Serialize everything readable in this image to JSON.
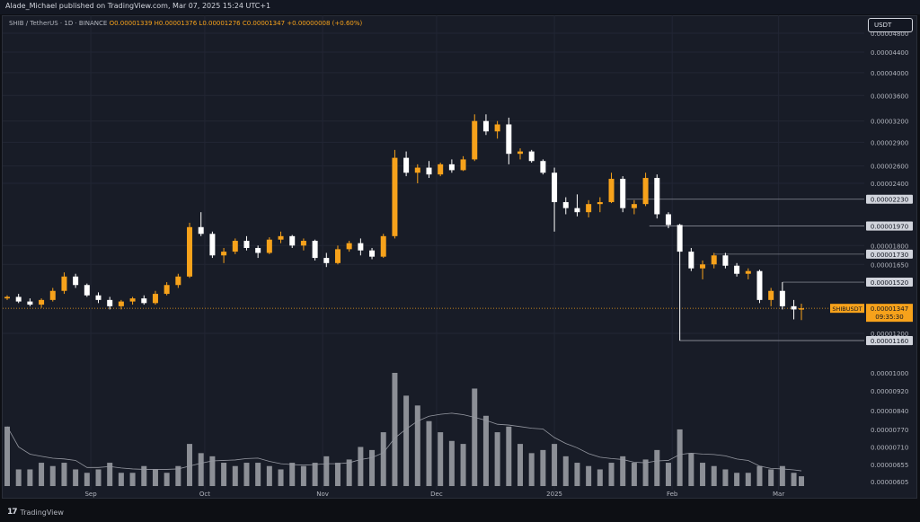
{
  "header": {
    "published": "Alade_Michael published on TradingView.com, Mar 07, 2025 15:24 UTC+1"
  },
  "legend": {
    "symbol": "SHIB / TetherUS · 1D · BINANCE",
    "ohlc": "O0.00001339  H0.00001376  L0.00001276  C0.00001347  +0.00000008 (+0.60%)"
  },
  "currency_button": {
    "label": "USDT"
  },
  "footer": {
    "logo_text": "TradingView"
  },
  "colors": {
    "up": "#f7a21b",
    "down": "#ffffff",
    "background": "#181c27",
    "grid": "#222634",
    "volume": "#8c8f96",
    "volume_ma": "#9598a1",
    "level_line": "#787b86",
    "price_line": "#f7a21b"
  },
  "chart_data": {
    "type": "candlestick",
    "symbol": "SHIBUSDT",
    "interval": "1D",
    "x_range": [
      "2024-08-10",
      "2025-03-07"
    ],
    "x_tick_labels": [
      {
        "label": "Sep",
        "date": "2024-09-01"
      },
      {
        "label": "Oct",
        "date": "2024-10-01"
      },
      {
        "label": "Nov",
        "date": "2024-11-01"
      },
      {
        "label": "Dec",
        "date": "2024-12-01"
      },
      {
        "label": "2025",
        "date": "2025-01-01"
      },
      {
        "label": "Feb",
        "date": "2025-02-01"
      },
      {
        "label": "Mar",
        "date": "2025-03-01"
      }
    ],
    "price_axis": {
      "scale": "log",
      "tick_labels": [
        "0.00004800",
        "0.00004400",
        "0.00004000",
        "0.00003600",
        "0.00003200",
        "0.00002900",
        "0.00002600",
        "0.00002400",
        "0.00001800",
        "0.00001650",
        "0.00001200"
      ],
      "tick_values": [
        4.8e-05,
        4.4e-05,
        4e-05,
        3.6e-05,
        3.2e-05,
        2.9e-05,
        2.6e-05,
        2.4e-05,
        1.8e-05,
        1.65e-05,
        1.2e-05
      ]
    },
    "volume_axis": {
      "scale": "log",
      "tick_labels": [
        "0.00001000",
        "0.00000920",
        "0.00000840",
        "0.00000770",
        "0.00000710",
        "0.00000655",
        "0.00000605"
      ],
      "tick_values": [
        1e-05,
        9.2e-06,
        8.4e-06,
        7.7e-06,
        7.1e-06,
        6.55e-06,
        6.05e-06
      ]
    },
    "levels": [
      {
        "label": "0.00002230",
        "value": 2.23e-05,
        "from": "2025-01-20"
      },
      {
        "label": "0.00001971",
        "value": 1.971e-05,
        "from": "2025-01-26"
      },
      {
        "label": "0.00001970",
        "value": 1.97e-05,
        "from": "2025-01-26"
      },
      {
        "label": "0.00001730",
        "value": 1.73e-05,
        "from": "2025-02-12"
      },
      {
        "label": "0.00001520",
        "value": 1.52e-05,
        "from": "2025-03-02"
      },
      {
        "label": "0.00001161",
        "value": 1.161e-05,
        "from": "2025-02-03"
      },
      {
        "label": "0.00001160",
        "value": 1.16e-05,
        "from": "2025-02-03"
      }
    ],
    "current_price": {
      "symbol": "SHIBUSDT",
      "label": "0.00001347",
      "value": 1.347e-05,
      "countdown": "09:35:30"
    },
    "candles": [
      [
        "2024-08-10",
        1.41e-05,
        1.43e-05,
        1.4e-05,
        1.42e-05,
        7.8e-06
      ],
      [
        "2024-08-13",
        1.42e-05,
        1.44e-05,
        1.38e-05,
        1.39e-05,
        6.4e-06
      ],
      [
        "2024-08-16",
        1.39e-05,
        1.41e-05,
        1.36e-05,
        1.37e-05,
        6.4e-06
      ],
      [
        "2024-08-19",
        1.37e-05,
        1.41e-05,
        1.35e-05,
        1.4e-05,
        6.6e-06
      ],
      [
        "2024-08-22",
        1.4e-05,
        1.48e-05,
        1.39e-05,
        1.46e-05,
        6.5e-06
      ],
      [
        "2024-08-25",
        1.46e-05,
        1.59e-05,
        1.44e-05,
        1.56e-05,
        6.6e-06
      ],
      [
        "2024-08-28",
        1.56e-05,
        1.58e-05,
        1.48e-05,
        1.5e-05,
        6.4e-06
      ],
      [
        "2024-08-31",
        1.5e-05,
        1.51e-05,
        1.42e-05,
        1.43e-05,
        6.3e-06
      ],
      [
        "2024-09-03",
        1.43e-05,
        1.45e-05,
        1.38e-05,
        1.4e-05,
        6.4e-06
      ],
      [
        "2024-09-06",
        1.4e-05,
        1.42e-05,
        1.34e-05,
        1.36e-05,
        6.6e-06
      ],
      [
        "2024-09-09",
        1.36e-05,
        1.4e-05,
        1.34e-05,
        1.39e-05,
        6.3e-06
      ],
      [
        "2024-09-12",
        1.39e-05,
        1.42e-05,
        1.37e-05,
        1.41e-05,
        6.3e-06
      ],
      [
        "2024-09-15",
        1.41e-05,
        1.43e-05,
        1.37e-05,
        1.38e-05,
        6.5e-06
      ],
      [
        "2024-09-18",
        1.38e-05,
        1.46e-05,
        1.37e-05,
        1.44e-05,
        6.4e-06
      ],
      [
        "2024-09-21",
        1.44e-05,
        1.52e-05,
        1.43e-05,
        1.5e-05,
        6.3e-06
      ],
      [
        "2024-09-24",
        1.5e-05,
        1.58e-05,
        1.48e-05,
        1.56e-05,
        6.5e-06
      ],
      [
        "2024-09-27",
        1.56e-05,
        2e-05,
        1.55e-05,
        1.96e-05,
        7.2e-06
      ],
      [
        "2024-09-30",
        1.96e-05,
        2.1e-05,
        1.88e-05,
        1.9e-05,
        6.9e-06
      ],
      [
        "2024-10-03",
        1.9e-05,
        1.92e-05,
        1.7e-05,
        1.72e-05,
        6.8e-06
      ],
      [
        "2024-10-06",
        1.72e-05,
        1.78e-05,
        1.66e-05,
        1.75e-05,
        6.6e-06
      ],
      [
        "2024-10-09",
        1.75e-05,
        1.86e-05,
        1.73e-05,
        1.84e-05,
        6.5e-06
      ],
      [
        "2024-10-12",
        1.84e-05,
        1.88e-05,
        1.76e-05,
        1.78e-05,
        6.6e-06
      ],
      [
        "2024-10-15",
        1.78e-05,
        1.8e-05,
        1.7e-05,
        1.74e-05,
        6.6e-06
      ],
      [
        "2024-10-18",
        1.74e-05,
        1.87e-05,
        1.73e-05,
        1.85e-05,
        6.5e-06
      ],
      [
        "2024-10-21",
        1.85e-05,
        1.92e-05,
        1.82e-05,
        1.88e-05,
        6.4e-06
      ],
      [
        "2024-10-24",
        1.88e-05,
        1.89e-05,
        1.78e-05,
        1.8e-05,
        6.6e-06
      ],
      [
        "2024-10-27",
        1.8e-05,
        1.86e-05,
        1.76e-05,
        1.84e-05,
        6.5e-06
      ],
      [
        "2024-10-30",
        1.84e-05,
        1.85e-05,
        1.68e-05,
        1.7e-05,
        6.6e-06
      ],
      [
        "2024-11-02",
        1.7e-05,
        1.74e-05,
        1.63e-05,
        1.66e-05,
        6.8e-06
      ],
      [
        "2024-11-05",
        1.66e-05,
        1.8e-05,
        1.65e-05,
        1.77e-05,
        6.6e-06
      ],
      [
        "2024-11-08",
        1.77e-05,
        1.84e-05,
        1.75e-05,
        1.82e-05,
        6.7e-06
      ],
      [
        "2024-11-11",
        1.82e-05,
        1.86e-05,
        1.72e-05,
        1.76e-05,
        7.1e-06
      ],
      [
        "2024-11-14",
        1.76e-05,
        1.78e-05,
        1.69e-05,
        1.71e-05,
        7e-06
      ],
      [
        "2024-11-17",
        1.71e-05,
        1.9e-05,
        1.7e-05,
        1.88e-05,
        7.6e-06
      ],
      [
        "2024-11-20",
        1.88e-05,
        2.8e-05,
        1.86e-05,
        2.7e-05,
        1e-05
      ],
      [
        "2024-11-23",
        2.7e-05,
        2.78e-05,
        2.48e-05,
        2.52e-05,
        9e-06
      ],
      [
        "2024-11-26",
        2.52e-05,
        2.62e-05,
        2.4e-05,
        2.58e-05,
        8.6e-06
      ],
      [
        "2024-11-29",
        2.58e-05,
        2.66e-05,
        2.46e-05,
        2.5e-05,
        8e-06
      ],
      [
        "2024-12-02",
        2.5e-05,
        2.64e-05,
        2.48e-05,
        2.62e-05,
        7.6e-06
      ],
      [
        "2024-12-05",
        2.62e-05,
        2.68e-05,
        2.52e-05,
        2.55e-05,
        7.3e-06
      ],
      [
        "2024-12-08",
        2.55e-05,
        2.72e-05,
        2.54e-05,
        2.68e-05,
        7.2e-06
      ],
      [
        "2024-12-11",
        2.68e-05,
        3.3e-05,
        2.66e-05,
        3.2e-05,
        9.3e-06
      ],
      [
        "2024-12-14",
        3.2e-05,
        3.3e-05,
        3e-05,
        3.05e-05,
        8.2e-06
      ],
      [
        "2024-12-17",
        3.05e-05,
        3.2e-05,
        2.95e-05,
        3.15e-05,
        7.6e-06
      ],
      [
        "2024-12-20",
        3.15e-05,
        3.25e-05,
        2.62e-05,
        2.75e-05,
        7.8e-06
      ],
      [
        "2024-12-23",
        2.75e-05,
        2.82e-05,
        2.68e-05,
        2.78e-05,
        7.2e-06
      ],
      [
        "2024-12-26",
        2.78e-05,
        2.8e-05,
        2.64e-05,
        2.66e-05,
        6.9e-06
      ],
      [
        "2024-12-29",
        2.66e-05,
        2.68e-05,
        2.5e-05,
        2.52e-05,
        7e-06
      ],
      [
        "2025-01-01",
        2.52e-05,
        2.58e-05,
        1.92e-05,
        2.2e-05,
        7.2e-06
      ],
      [
        "2025-01-04",
        2.2e-05,
        2.25e-05,
        2.08e-05,
        2.14e-05,
        6.8e-06
      ],
      [
        "2025-01-07",
        2.14e-05,
        2.28e-05,
        2.06e-05,
        2.1e-05,
        6.6e-06
      ],
      [
        "2025-01-10",
        2.1e-05,
        2.22e-05,
        2.05e-05,
        2.18e-05,
        6.5e-06
      ],
      [
        "2025-01-13",
        2.18e-05,
        2.25e-05,
        2.1e-05,
        2.2e-05,
        6.4e-06
      ],
      [
        "2025-01-16",
        2.2e-05,
        2.52e-05,
        2.19e-05,
        2.45e-05,
        6.6e-06
      ],
      [
        "2025-01-19",
        2.45e-05,
        2.48e-05,
        2.1e-05,
        2.14e-05,
        6.8e-06
      ],
      [
        "2025-01-22",
        2.14e-05,
        2.22e-05,
        2.08e-05,
        2.18e-05,
        6.6e-06
      ],
      [
        "2025-01-25",
        2.18e-05,
        2.52e-05,
        2.16e-05,
        2.46e-05,
        6.7e-06
      ],
      [
        "2025-01-28",
        2.46e-05,
        2.5e-05,
        2.04e-05,
        2.08e-05,
        7e-06
      ],
      [
        "2025-01-31",
        2.08e-05,
        2.1e-05,
        1.95e-05,
        1.98e-05,
        6.6e-06
      ],
      [
        "2025-02-03",
        1.98e-05,
        1.99e-05,
        1.16e-05,
        1.75e-05,
        7.7e-06
      ],
      [
        "2025-02-06",
        1.75e-05,
        1.78e-05,
        1.6e-05,
        1.62e-05,
        6.9e-06
      ],
      [
        "2025-02-09",
        1.62e-05,
        1.68e-05,
        1.54e-05,
        1.65e-05,
        6.6e-06
      ],
      [
        "2025-02-12",
        1.65e-05,
        1.74e-05,
        1.62e-05,
        1.72e-05,
        6.5e-06
      ],
      [
        "2025-02-15",
        1.72e-05,
        1.74e-05,
        1.62e-05,
        1.64e-05,
        6.4e-06
      ],
      [
        "2025-02-18",
        1.64e-05,
        1.66e-05,
        1.56e-05,
        1.58e-05,
        6.3e-06
      ],
      [
        "2025-02-21",
        1.58e-05,
        1.62e-05,
        1.54e-05,
        1.6e-05,
        6.3e-06
      ],
      [
        "2025-02-24",
        1.6e-05,
        1.61e-05,
        1.38e-05,
        1.4e-05,
        6.5e-06
      ],
      [
        "2025-02-27",
        1.4e-05,
        1.48e-05,
        1.36e-05,
        1.46e-05,
        6.4e-06
      ],
      [
        "2025-03-02",
        1.46e-05,
        1.52e-05,
        1.34e-05,
        1.36e-05,
        6.5e-06
      ],
      [
        "2025-03-05",
        1.36e-05,
        1.4e-05,
        1.28e-05,
        1.34e-05,
        6.3e-06
      ],
      [
        "2025-03-07",
        1.339e-05,
        1.376e-05,
        1.276e-05,
        1.347e-05,
        6.2e-06
      ]
    ]
  }
}
